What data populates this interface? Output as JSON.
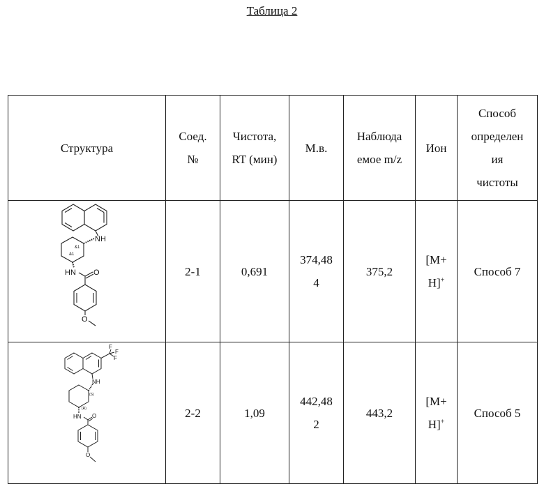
{
  "title": "Таблица 2",
  "table": {
    "headers": [
      {
        "lines": [
          "Структура"
        ]
      },
      {
        "lines": [
          "Соед.",
          "№"
        ]
      },
      {
        "lines": [
          "Чистота,",
          "RT (мин)"
        ]
      },
      {
        "lines": [
          "М.в."
        ]
      },
      {
        "lines": [
          "Наблюда",
          "емое m/z"
        ]
      },
      {
        "lines": [
          "Ион"
        ]
      },
      {
        "lines": [
          "Способ",
          "определен",
          "ия",
          "чистоты"
        ]
      }
    ],
    "rows": [
      {
        "structure": {
          "nh_label": "NH",
          "hn_label": "HN",
          "o_carbonyl": "O",
          "o_methoxy": "O",
          "stereo_1": "&1",
          "stereo_2": "&1"
        },
        "compound": "2-1",
        "rt": "0,691",
        "mw_lines": [
          "374,48",
          "4"
        ],
        "observed": "375,2",
        "ion_lines": [
          "[M+",
          "H]"
        ],
        "ion_charge": "+",
        "method": "Способ 7"
      },
      {
        "structure": {
          "nh_label": "NH",
          "hn_label": "HN",
          "o_carbonyl": "O",
          "o_methoxy": "O",
          "stereo_1": "(S)",
          "stereo_2": "(R)",
          "f1": "F",
          "f2": "F",
          "f3": "F"
        },
        "compound": "2-2",
        "rt": "1,09",
        "mw_lines": [
          "442,48",
          "2"
        ],
        "observed": "443,2",
        "ion_lines": [
          "[M+",
          "H]"
        ],
        "ion_charge": "+",
        "method": "Способ 5"
      }
    ]
  }
}
